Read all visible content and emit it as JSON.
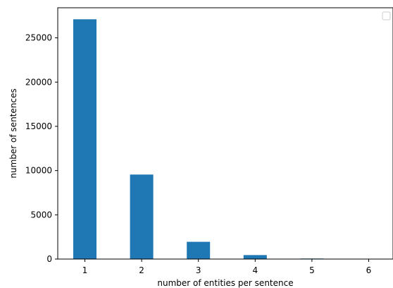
{
  "chart_data": {
    "type": "bar",
    "categories": [
      "1",
      "2",
      "3",
      "4",
      "5",
      "6"
    ],
    "values": [
      27100,
      9550,
      1950,
      450,
      60,
      40
    ],
    "xlabel": "number of entities per sentence",
    "ylabel": "number of sentences",
    "ylim": [
      0,
      28400
    ],
    "yticks": [
      0,
      5000,
      10000,
      15000,
      20000,
      25000
    ],
    "ytick_labels": [
      "0",
      "5000",
      "10000",
      "15000",
      "20000",
      "25000"
    ],
    "grid": false,
    "legend": "top-right (empty)",
    "colors": {
      "bar": "#1f77b4",
      "axis": "#000000"
    }
  }
}
